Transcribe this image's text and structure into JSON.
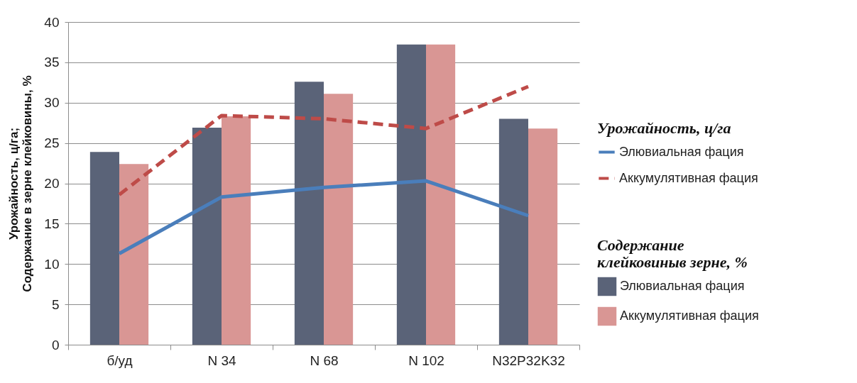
{
  "chart_data": {
    "type": "bar",
    "ylabel": "Урожайность, ц/га;\nСодержание в зерне клейковины, %",
    "legend_title": [
      "Урожайность, ц/га",
      "Содержание клейковиныв зерне, %"
    ],
    "categories": [
      "б/уд",
      "N 34",
      "N 68",
      "N 102",
      "N32P32K32"
    ],
    "series": [
      {
        "name": "Элювиальная фация",
        "color": "#5a6378",
        "values": [
          23.9,
          26.9,
          32.6,
          37.2,
          28.0
        ]
      },
      {
        "name": "Аккумулятивная фация",
        "color": "#d99694",
        "values": [
          22.4,
          28.3,
          31.1,
          37.2,
          26.8
        ]
      },
      {
        "name": "Элювиальная фация",
        "type": "line",
        "color": "#4a7ebb",
        "line_style": "solid",
        "values": [
          11.3,
          18.3,
          19.5,
          20.3,
          16.0
        ]
      },
      {
        "name": "Аккумулятивная фация",
        "type": "line",
        "color": "#be4b48",
        "line_style": "dashed",
        "values": [
          18.6,
          28.4,
          28.0,
          26.8,
          32.0
        ]
      }
    ],
    "ylim": [
      0,
      40
    ],
    "yticks": [
      0,
      5,
      10,
      15,
      20,
      25,
      30,
      35,
      40
    ],
    "grid": "y",
    "legend": "right",
    "marker": "none"
  }
}
